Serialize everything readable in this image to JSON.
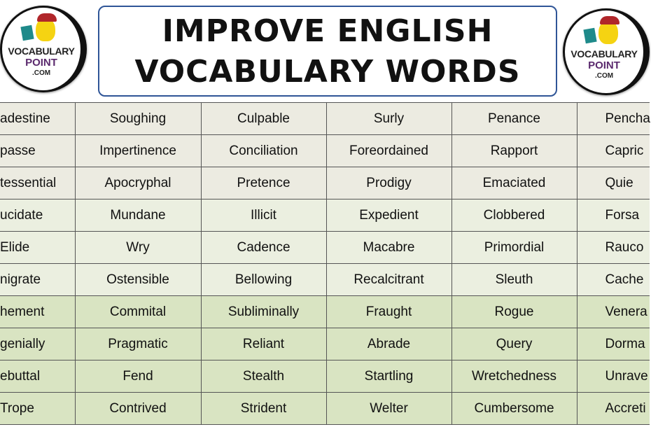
{
  "logo": {
    "line1": "VOCABULARY",
    "line2": "POINT",
    "line3": ".COM"
  },
  "title": {
    "line1": "IMPROVE ENGLISH",
    "line2": "VOCABULARY WORDS"
  },
  "rows": [
    [
      "adestine",
      "Soughing",
      "Culpable",
      "Surly",
      "Penance",
      "Pencha"
    ],
    [
      "passe",
      "Impertinence",
      "Conciliation",
      "Foreordained",
      "Rapport",
      "Capric"
    ],
    [
      "tessential",
      "Apocryphal",
      "Pretence",
      "Prodigy",
      "Emaciated",
      "Quie"
    ],
    [
      "ucidate",
      "Mundane",
      "Illicit",
      "Expedient",
      "Clobbered",
      "Forsa"
    ],
    [
      "Elide",
      "Wry",
      "Cadence",
      "Macabre",
      "Primordial",
      "Rauco"
    ],
    [
      "nigrate",
      "Ostensible",
      "Bellowing",
      "Recalcitrant",
      "Sleuth",
      "Cache"
    ],
    [
      "hement",
      "Commital",
      "Subliminally",
      "Fraught",
      "Rogue",
      "Venera"
    ],
    [
      "genially",
      "Pragmatic",
      "Reliant",
      "Abrade",
      "Query",
      "Dorma"
    ],
    [
      "ebuttal",
      "Fend",
      "Stealth",
      "Startling",
      "Wretchedness",
      "Unrave"
    ],
    [
      "Trope",
      "Contrived",
      "Strident",
      "Welter",
      "Cumbersome",
      "Accreti"
    ]
  ],
  "colors": {
    "title_border": "#2f5597",
    "row_band_1": "#ecebe1",
    "row_band_2": "#ebefe0",
    "row_band_3": "#d9e4c2"
  }
}
